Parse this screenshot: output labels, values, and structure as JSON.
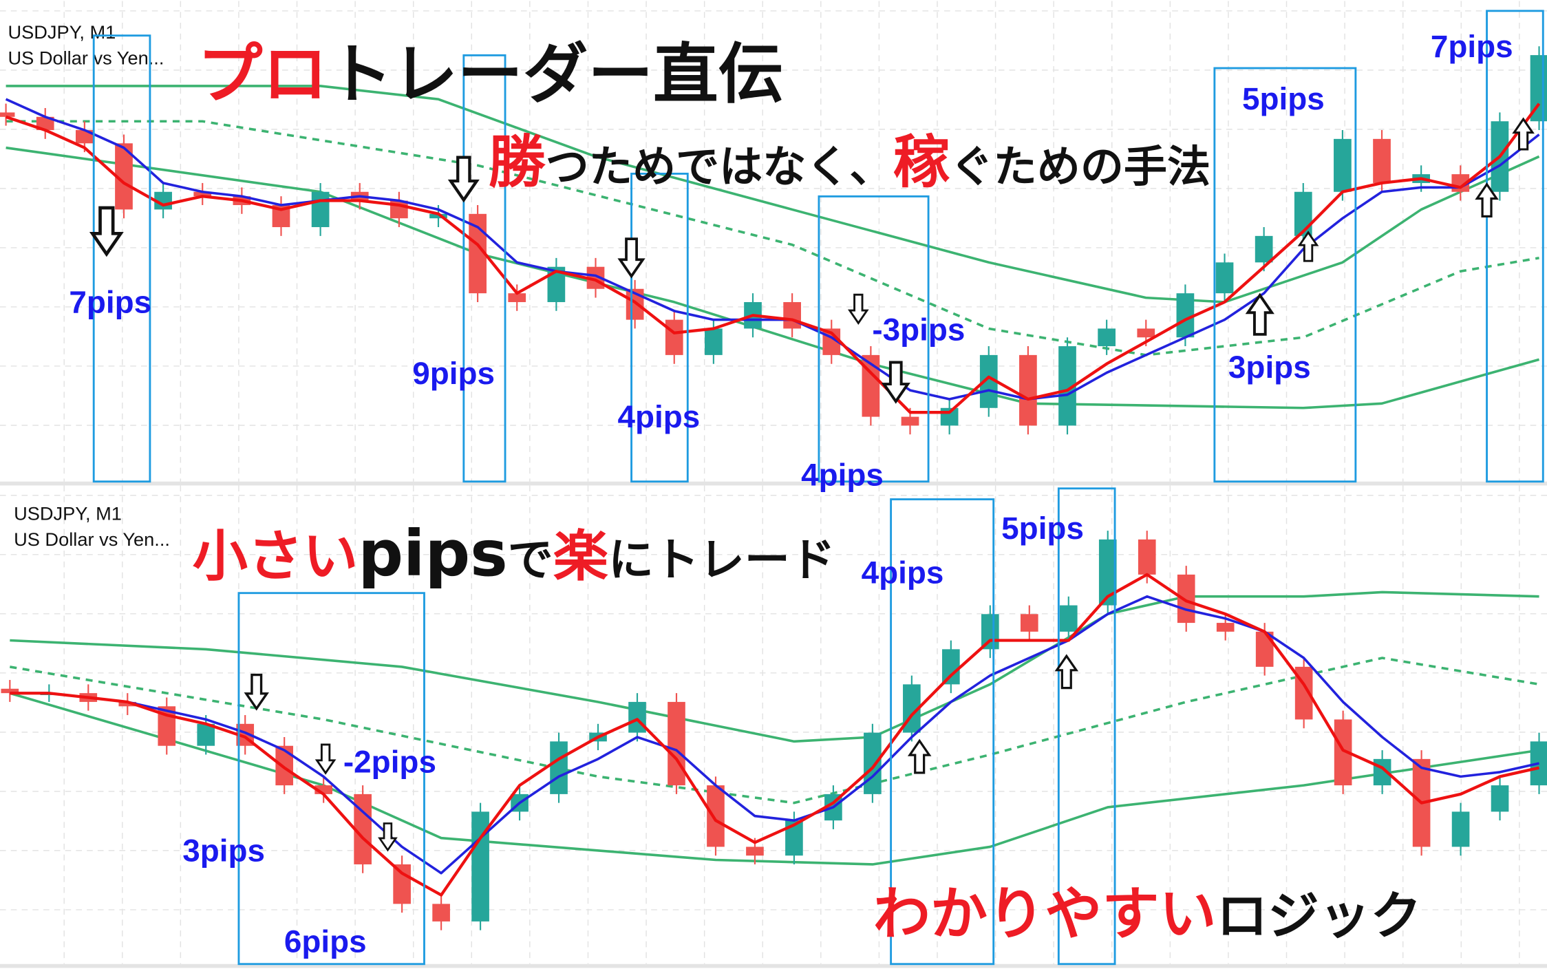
{
  "colors": {
    "bull": "#26a69a",
    "bear": "#ef5350",
    "ma_fast": "#ee1111",
    "ma_slow": "#2222dd",
    "bands": "#3cb371",
    "box": "#1e9be0",
    "pips_text": "#1a1aee",
    "accent_red": "#ee1c25"
  },
  "top_panel": {
    "symbol": "USDJPY, M1",
    "description": "US Dollar vs Yen...",
    "headline1": {
      "red": "プロ",
      "black": "トレーダー直伝"
    },
    "headline2": {
      "p1": "勝",
      "p2": "つためではなく、",
      "p3": "稼",
      "p4": "ぐための手法"
    },
    "pips_labels": [
      "7pips",
      "9pips",
      "4pips",
      "4pips",
      "-3pips",
      "5pips",
      "3pips",
      "7pips"
    ],
    "arrows": [
      "arrow-down",
      "arrow-down",
      "arrow-down",
      "arrow-down",
      "arrow-down",
      "arrow-up",
      "arrow-up",
      "arrow-up",
      "arrow-up"
    ]
  },
  "bottom_panel": {
    "symbol": "USDJPY, M1",
    "description": "US Dollar vs Yen...",
    "headline1": {
      "p1": "小さい",
      "p2": "pips",
      "p3": "で",
      "p4": "楽",
      "p5": "にトレード"
    },
    "headline2": {
      "red": "わかりやすい",
      "black": "ロジック"
    },
    "pips_labels": [
      "-2pips",
      "3pips",
      "6pips",
      "4pips",
      "5pips"
    ],
    "arrows": [
      "arrow-down",
      "arrow-down",
      "arrow-down",
      "arrow-up",
      "arrow-up"
    ]
  },
  "chart_data": [
    {
      "type": "candlestick",
      "title": "USDJPY, M1",
      "grid": true,
      "closes": [
        80,
        77,
        74,
        59,
        63,
        62,
        60,
        55,
        63,
        61,
        57,
        58,
        40,
        38,
        46,
        41,
        34,
        26,
        32,
        38,
        32,
        26,
        12,
        10,
        14,
        26,
        10,
        28,
        32,
        30,
        40,
        47,
        53,
        63,
        75,
        65,
        67,
        63,
        79,
        94
      ],
      "ma_fast": [
        80,
        77,
        73,
        65,
        60,
        62,
        61,
        59,
        61,
        61,
        60,
        58,
        51,
        40,
        45,
        43,
        38,
        31,
        32,
        35,
        34,
        31,
        22,
        13,
        13,
        21,
        16,
        18,
        24,
        29,
        34,
        38,
        46,
        54,
        63,
        65,
        66,
        64,
        71,
        83
      ],
      "ma_slow": [
        84,
        80,
        77,
        73,
        65,
        63,
        62,
        60,
        61,
        62,
        61,
        59,
        55,
        47,
        45,
        44,
        40,
        36,
        34,
        34,
        34,
        30,
        24,
        18,
        16,
        18,
        16,
        17,
        22,
        26,
        30,
        34,
        40,
        50,
        57,
        63,
        64,
        64,
        69,
        76
      ],
      "band_upper": {
        "x": [
          0,
          8,
          11,
          15,
          20,
          25,
          29,
          31,
          34,
          36,
          39
        ],
        "values": [
          87,
          87,
          84,
          71,
          59,
          47,
          39,
          38,
          47,
          59,
          71
        ]
      },
      "band_middle": {
        "x": [
          0,
          5,
          12,
          20,
          25,
          29,
          33,
          37,
          39
        ],
        "values": [
          79,
          79,
          69,
          51,
          32,
          26,
          30,
          45,
          48
        ]
      },
      "band_lower": {
        "x": [
          0,
          8,
          12,
          17,
          22,
          26,
          33,
          35,
          39
        ],
        "values": [
          73,
          63,
          49,
          38,
          24,
          15,
          14,
          15,
          25
        ]
      }
    },
    {
      "type": "candlestick",
      "title": "USDJPY, M1",
      "grid": true,
      "closes": [
        59,
        59,
        57,
        56,
        47,
        52,
        47,
        38,
        36,
        20,
        11,
        7,
        32,
        36,
        48,
        50,
        57,
        38,
        24,
        22,
        30,
        36,
        50,
        61,
        69,
        77,
        73,
        79,
        94,
        86,
        75,
        73,
        65,
        53,
        38,
        44,
        24,
        32,
        38,
        48
      ],
      "ma_fast": [
        59,
        59,
        58,
        57,
        54,
        52,
        49,
        42,
        36,
        26,
        18,
        13,
        26,
        38,
        44,
        49,
        53,
        44,
        30,
        25,
        29,
        34,
        42,
        54,
        63,
        71,
        71,
        71,
        81,
        86,
        80,
        77,
        73,
        61,
        46,
        42,
        34,
        36,
        40,
        42
      ],
      "ma_slow": [
        59,
        59,
        58,
        57,
        55,
        53,
        50,
        46,
        40,
        32,
        24,
        18,
        26,
        34,
        40,
        44,
        49,
        46,
        38,
        31,
        30,
        33,
        40,
        49,
        57,
        63,
        67,
        71,
        77,
        81,
        78,
        76,
        73,
        67,
        57,
        49,
        42,
        40,
        41,
        43
      ],
      "band_upper": {
        "x": [
          0,
          5,
          10,
          15,
          20,
          22,
          25,
          28,
          30,
          33,
          35,
          39
        ],
        "values": [
          71,
          69,
          65,
          57,
          48,
          49,
          61,
          77,
          81,
          81,
          82,
          81
        ]
      },
      "band_middle": {
        "x": [
          0,
          8,
          15,
          20,
          25,
          30,
          35,
          39
        ],
        "values": [
          65,
          53,
          40,
          34,
          45,
          57,
          67,
          61
        ]
      },
      "band_lower": {
        "x": [
          0,
          8,
          11,
          18,
          22,
          25,
          28,
          33,
          36,
          39
        ],
        "values": [
          59,
          38,
          26,
          21,
          20,
          24,
          33,
          38,
          42,
          46
        ]
      }
    }
  ]
}
